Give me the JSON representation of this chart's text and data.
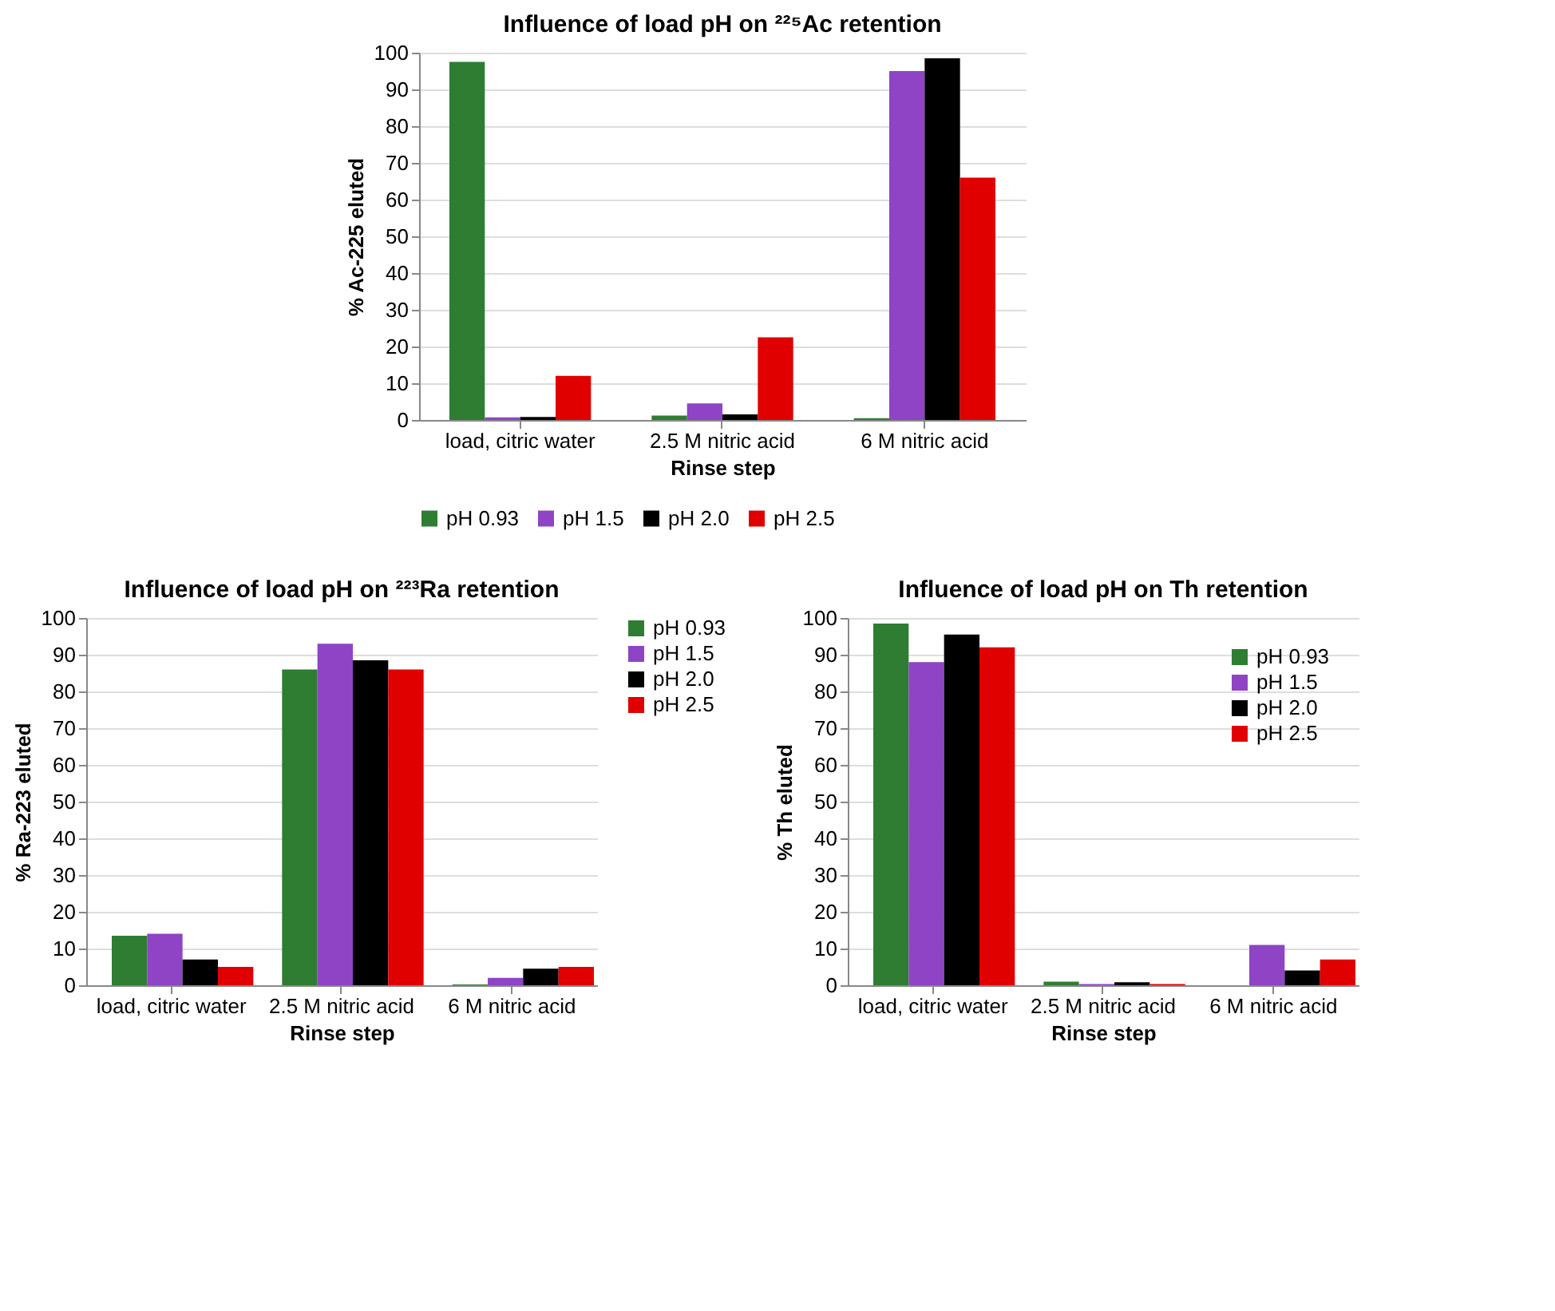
{
  "chart_data": [
    {
      "type": "bar",
      "title": "Influence of load pH on ²²⁵Ac retention",
      "xlabel": "Rinse step",
      "ylabel": "% Ac-225 eluted",
      "categories": [
        "load, citric water",
        "2.5 M nitric acid",
        "6 M nitric acid"
      ],
      "series": [
        {
          "name": "pH 0.93",
          "color": "#2e7d32",
          "values": [
            97.5,
            1.2,
            0.5
          ]
        },
        {
          "name": "pH 1.5",
          "color": "#8e44c4",
          "values": [
            0.7,
            4.5,
            95
          ]
        },
        {
          "name": "pH 2.0",
          "color": "#000000",
          "values": [
            0.8,
            1.5,
            98.5
          ]
        },
        {
          "name": "pH 2.5",
          "color": "#e00000",
          "values": [
            12,
            22.5,
            66
          ]
        }
      ],
      "ylim": [
        0,
        100
      ],
      "yticks": [
        0,
        10,
        20,
        30,
        40,
        50,
        60,
        70,
        80,
        90,
        100
      ],
      "grid": "y",
      "legend": "bottom"
    },
    {
      "type": "bar",
      "title": "Influence of load pH on ²²³Ra retention",
      "xlabel": "Rinse step",
      "ylabel": "% Ra-223 eluted",
      "categories": [
        "load, citric water",
        "2.5 M nitric acid",
        "6 M nitric acid"
      ],
      "series": [
        {
          "name": "pH 0.93",
          "color": "#2e7d32",
          "values": [
            13.5,
            86,
            0.2
          ]
        },
        {
          "name": "pH 1.5",
          "color": "#8e44c4",
          "values": [
            14,
            93,
            2
          ]
        },
        {
          "name": "pH 2.0",
          "color": "#000000",
          "values": [
            7,
            88.5,
            4.5
          ]
        },
        {
          "name": "pH 2.5",
          "color": "#e00000",
          "values": [
            5,
            86,
            5
          ]
        }
      ],
      "ylim": [
        0,
        100
      ],
      "yticks": [
        0,
        10,
        20,
        30,
        40,
        50,
        60,
        70,
        80,
        90,
        100
      ],
      "grid": "y",
      "legend": "right"
    },
    {
      "type": "bar",
      "title": "Influence of load pH on Th retention",
      "xlabel": "Rinse step",
      "ylabel": "% Th eluted",
      "categories": [
        "load, citric water",
        "2.5 M nitric acid",
        "6 M nitric acid"
      ],
      "series": [
        {
          "name": "pH 0.93",
          "color": "#2e7d32",
          "values": [
            98.5,
            1,
            0
          ]
        },
        {
          "name": "pH 1.5",
          "color": "#8e44c4",
          "values": [
            88,
            0.3,
            11
          ]
        },
        {
          "name": "pH 2.0",
          "color": "#000000",
          "values": [
            95.5,
            0.8,
            4
          ]
        },
        {
          "name": "pH 2.5",
          "color": "#e00000",
          "values": [
            92,
            0.3,
            7
          ]
        }
      ],
      "ylim": [
        0,
        100
      ],
      "yticks": [
        0,
        10,
        20,
        30,
        40,
        50,
        60,
        70,
        80,
        90,
        100
      ],
      "grid": "y",
      "legend": "top right"
    }
  ]
}
